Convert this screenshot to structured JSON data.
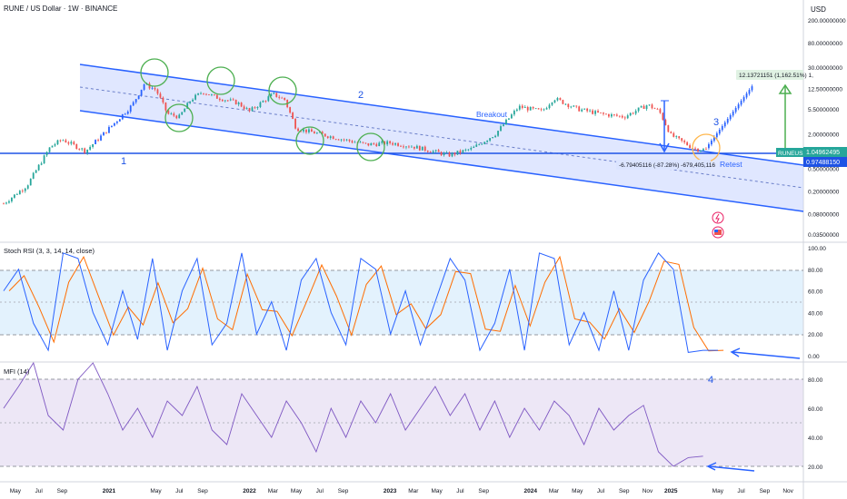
{
  "header": {
    "symbol_title": "RUNE / US Dollar · 1W · BINANCE",
    "currency": "USD"
  },
  "price_axis": {
    "labels": [
      "200.00000000",
      "80.00000000",
      "30.00000000",
      "12.50000000",
      "5.50000000",
      "2.00000000",
      "0.50000000",
      "0.20000000",
      "0.08000000",
      "0.03500000"
    ],
    "values": [
      200,
      80,
      30,
      12.5,
      5.5,
      2.0,
      0.5,
      0.2,
      0.08,
      0.035
    ],
    "scale": "log"
  },
  "price_tags": {
    "symbol": "RUNEUSD",
    "last_price": "1.04962495",
    "last_price_value": 1.0496,
    "support_price": "0.97488150",
    "support_value": 0.9749
  },
  "annotations": {
    "label_1": "1",
    "label_2": "2",
    "label_3": "3",
    "label_4": "4",
    "breakout": "Breakout",
    "retest": "Retest",
    "drop_measure": "-6.79405116 (-87.28%) -679,405,116",
    "rise_measure": "12.13721151 (1,162.51%) 1,"
  },
  "stoch_panel": {
    "title": "Stoch RSI (3, 3, 14, 14, close)",
    "axis_labels": [
      "100.00",
      "80.00",
      "60.00",
      "40.00",
      "20.00",
      "0.00"
    ],
    "axis_values": [
      100,
      80,
      60,
      40,
      20,
      0
    ],
    "band": [
      20,
      80
    ]
  },
  "mfi_panel": {
    "title": "MFI (14)",
    "axis_labels": [
      "80.00",
      "60.00",
      "40.00",
      "20.00"
    ],
    "axis_values": [
      80,
      60,
      40,
      20
    ],
    "band": [
      20,
      80
    ]
  },
  "time_axis": {
    "labels": [
      "May",
      "Jul",
      "Sep",
      "2021",
      "May",
      "Jul",
      "Sep",
      "2022",
      "Mar",
      "May",
      "Jul",
      "Sep",
      "2023",
      "Mar",
      "May",
      "Jul",
      "Sep",
      "2024",
      "Mar",
      "May",
      "Jul",
      "Sep",
      "Nov",
      "2025",
      "May",
      "Jul",
      "Sep",
      "Nov"
    ],
    "bold": [
      "2021",
      "2022",
      "2023",
      "2024",
      "2025"
    ]
  },
  "colors": {
    "up": "#26a69a",
    "up_blue": "#2962ff",
    "down": "#ef5350",
    "channel": "#2962ff",
    "channel_fill": "#c7d4ff",
    "circle": "#4caf50",
    "circle_orange": "#ffb74d",
    "stoch_k": "#2962ff",
    "stoch_d": "#ff6d00",
    "mfi": "#7e57c2",
    "stoch_bg": "#e3f2fd",
    "mfi_bg": "#ede7f6",
    "support": "#1e53e5"
  },
  "chart_data": {
    "type": "candlestick",
    "title": "RUNE / US Dollar · 1W · BINANCE",
    "x_range": [
      "2020-04",
      "2025-11"
    ],
    "y_scale": "log",
    "approx_weekly_close_path": [
      [
        "2020-04",
        0.12
      ],
      [
        "2020-06",
        0.25
      ],
      [
        "2020-08",
        1.2
      ],
      [
        "2020-09",
        1.6
      ],
      [
        "2020-11",
        1.0
      ],
      [
        "2021-01",
        2.5
      ],
      [
        "2021-03",
        6.5
      ],
      [
        "2021-04",
        15
      ],
      [
        "2021-05",
        12
      ],
      [
        "2021-06",
        4.5
      ],
      [
        "2021-07",
        4.0
      ],
      [
        "2021-08",
        8.0
      ],
      [
        "2021-09",
        11
      ],
      [
        "2021-10",
        9
      ],
      [
        "2021-12",
        7
      ],
      [
        "2022-01",
        5
      ],
      [
        "2022-03",
        10
      ],
      [
        "2022-04",
        8
      ],
      [
        "2022-05",
        2.5
      ],
      [
        "2022-07",
        2.0
      ],
      [
        "2022-09",
        1.6
      ],
      [
        "2022-11",
        1.3
      ],
      [
        "2023-01",
        1.4
      ],
      [
        "2023-03",
        1.2
      ],
      [
        "2023-06",
        0.85
      ],
      [
        "2023-08",
        1.1
      ],
      [
        "2023-10",
        2.0
      ],
      [
        "2023-12",
        6.0
      ],
      [
        "2024-02",
        5.0
      ],
      [
        "2024-03",
        8.5
      ],
      [
        "2024-05",
        5.5
      ],
      [
        "2024-07",
        4.5
      ],
      [
        "2024-09",
        4.0
      ],
      [
        "2024-11",
        6.5
      ],
      [
        "2024-12",
        5.0
      ],
      [
        "2025-01",
        1.9
      ],
      [
        "2025-03",
        1.1
      ],
      [
        "2025-04",
        1.05
      ]
    ],
    "projection": [
      [
        "2025-04",
        1.05
      ],
      [
        "2025-08",
        13.2
      ]
    ],
    "stoch_rsi_k": [
      [
        0,
        60
      ],
      [
        4,
        80
      ],
      [
        8,
        30
      ],
      [
        12,
        5
      ],
      [
        16,
        95
      ],
      [
        20,
        90
      ],
      [
        24,
        40
      ],
      [
        28,
        10
      ],
      [
        32,
        60
      ],
      [
        36,
        15
      ],
      [
        40,
        90
      ],
      [
        44,
        5
      ],
      [
        48,
        60
      ],
      [
        52,
        90
      ],
      [
        56,
        10
      ],
      [
        60,
        30
      ],
      [
        64,
        95
      ],
      [
        68,
        20
      ],
      [
        72,
        50
      ],
      [
        76,
        5
      ],
      [
        80,
        70
      ],
      [
        84,
        90
      ],
      [
        88,
        40
      ],
      [
        92,
        10
      ],
      [
        96,
        90
      ],
      [
        100,
        80
      ],
      [
        104,
        20
      ],
      [
        108,
        60
      ],
      [
        112,
        10
      ],
      [
        116,
        50
      ],
      [
        120,
        90
      ],
      [
        124,
        70
      ],
      [
        128,
        5
      ],
      [
        132,
        30
      ],
      [
        136,
        80
      ],
      [
        140,
        5
      ],
      [
        144,
        95
      ],
      [
        148,
        90
      ],
      [
        152,
        10
      ],
      [
        156,
        40
      ],
      [
        160,
        5
      ],
      [
        164,
        60
      ],
      [
        168,
        5
      ],
      [
        172,
        70
      ],
      [
        176,
        95
      ],
      [
        180,
        80
      ],
      [
        184,
        3
      ],
      [
        188,
        5
      ],
      [
        192,
        5
      ]
    ],
    "mfi": [
      [
        0,
        60
      ],
      [
        4,
        75
      ],
      [
        8,
        92
      ],
      [
        12,
        55
      ],
      [
        16,
        45
      ],
      [
        20,
        80
      ],
      [
        24,
        95
      ],
      [
        28,
        70
      ],
      [
        32,
        45
      ],
      [
        36,
        60
      ],
      [
        40,
        40
      ],
      [
        44,
        65
      ],
      [
        48,
        55
      ],
      [
        52,
        75
      ],
      [
        56,
        45
      ],
      [
        60,
        35
      ],
      [
        64,
        70
      ],
      [
        68,
        55
      ],
      [
        72,
        40
      ],
      [
        76,
        65
      ],
      [
        80,
        50
      ],
      [
        84,
        30
      ],
      [
        88,
        60
      ],
      [
        92,
        40
      ],
      [
        96,
        65
      ],
      [
        100,
        50
      ],
      [
        104,
        70
      ],
      [
        108,
        45
      ],
      [
        112,
        60
      ],
      [
        116,
        75
      ],
      [
        120,
        55
      ],
      [
        124,
        70
      ],
      [
        128,
        45
      ],
      [
        132,
        65
      ],
      [
        136,
        40
      ],
      [
        140,
        60
      ],
      [
        144,
        45
      ],
      [
        148,
        65
      ],
      [
        152,
        55
      ],
      [
        156,
        35
      ],
      [
        160,
        60
      ],
      [
        164,
        45
      ],
      [
        168,
        55
      ],
      [
        172,
        62
      ],
      [
        176,
        30
      ],
      [
        180,
        20
      ],
      [
        184,
        26
      ],
      [
        188,
        27
      ]
    ]
  }
}
